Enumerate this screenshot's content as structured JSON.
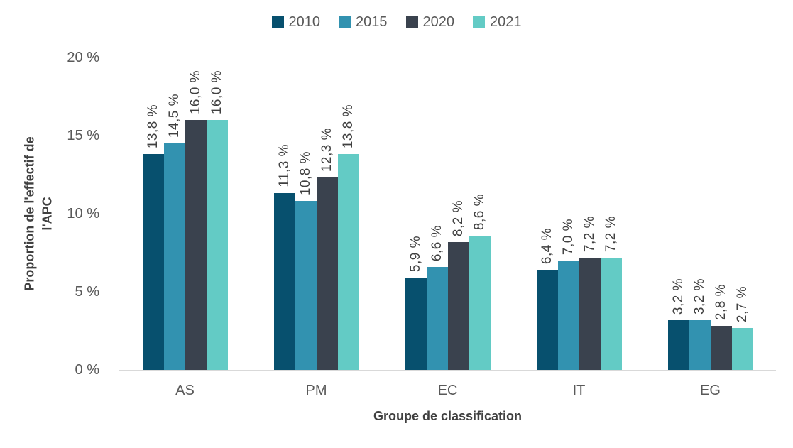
{
  "legend": {
    "items": [
      {
        "label": "2010",
        "color": "#07506E"
      },
      {
        "label": "2015",
        "color": "#3292B0"
      },
      {
        "label": "2020",
        "color": "#3A424E"
      },
      {
        "label": "2021",
        "color": "#63CBC5"
      }
    ]
  },
  "y_axis": {
    "title_line1": "Proportion de l'effectif de",
    "title_line2": "l'APC",
    "ticks": [
      "20 %",
      "15 %",
      "10 %",
      "5 %",
      "0 %"
    ]
  },
  "x_axis": {
    "title": "Groupe de classification"
  },
  "chart_data": {
    "type": "bar",
    "title": "",
    "xlabel": "Groupe de classification",
    "ylabel": "Proportion de l'effectif de l'APC",
    "ylim": [
      0,
      20
    ],
    "y_tick_step": 5,
    "grid": false,
    "legend_position": "top",
    "value_format": "french-percent",
    "categories": [
      "AS",
      "PM",
      "EC",
      "IT",
      "EG"
    ],
    "series": [
      {
        "name": "2010",
        "color": "#07506E",
        "values": [
          13.8,
          11.3,
          5.9,
          6.4,
          3.2
        ],
        "labels": [
          "13,8 %",
          "11,3 %",
          "5,9 %",
          "6,4 %",
          "3,2 %"
        ]
      },
      {
        "name": "2015",
        "color": "#3292B0",
        "values": [
          14.5,
          10.8,
          6.6,
          7.0,
          3.2
        ],
        "labels": [
          "14,5 %",
          "10,8 %",
          "6,6 %",
          "7,0 %",
          "3,2 %"
        ]
      },
      {
        "name": "2020",
        "color": "#3A424E",
        "values": [
          16.0,
          12.3,
          8.2,
          7.2,
          2.8
        ],
        "labels": [
          "16,0 %",
          "12,3 %",
          "8,2 %",
          "7,2 %",
          "2,8 %"
        ]
      },
      {
        "name": "2021",
        "color": "#63CBC5",
        "values": [
          16.0,
          13.8,
          8.6,
          7.2,
          2.7
        ],
        "labels": [
          "16,0 %",
          "13,8 %",
          "8,6 %",
          "7,2 %",
          "2,7 %"
        ]
      }
    ],
    "axis_line_color": "#D9D9D9",
    "data_label_color": "#404040",
    "tick_label_color": "#595959"
  }
}
